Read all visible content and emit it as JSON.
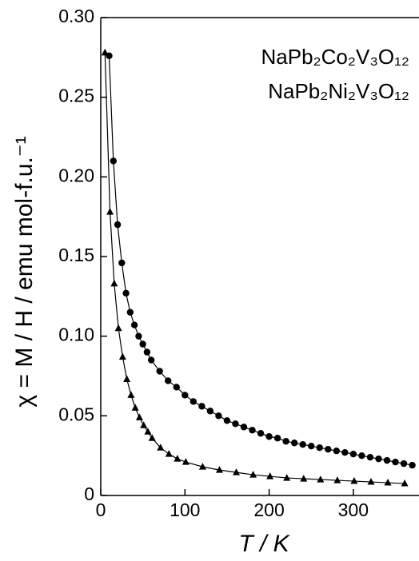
{
  "chart_data": {
    "type": "scatter-line",
    "x_label": "T / K",
    "y_label": "χ = M / H / emu mol-f.u.⁻¹",
    "xlim": [
      0,
      378
    ],
    "ylim": [
      0,
      0.3
    ],
    "xticks": [
      0,
      100,
      200,
      300
    ],
    "yticks": [
      0,
      {
        "value": 0.05,
        "label": "0.05"
      },
      {
        "value": 0.1,
        "label": "0.10"
      },
      {
        "value": 0.15,
        "label": "0.15"
      },
      {
        "value": 0.2,
        "label": "0.20"
      },
      {
        "value": 0.25,
        "label": "0.25"
      },
      {
        "value": 0.3,
        "label": "0.30"
      }
    ],
    "series": [
      {
        "name": "NaPb₂Co₂V₃O₁₂",
        "color": "#000000",
        "marker": "circle",
        "x": [
          10,
          15,
          20,
          25,
          30,
          35,
          40,
          45,
          50,
          55,
          60,
          70,
          80,
          90,
          100,
          110,
          120,
          130,
          140,
          150,
          160,
          170,
          180,
          190,
          200,
          210,
          220,
          230,
          240,
          250,
          260,
          270,
          280,
          290,
          300,
          310,
          320,
          330,
          340,
          350,
          360,
          370
        ],
        "values": [
          0.276,
          0.21,
          0.17,
          0.146,
          0.127,
          0.115,
          0.107,
          0.1,
          0.095,
          0.09,
          0.085,
          0.078,
          0.072,
          0.068,
          0.063,
          0.059,
          0.056,
          0.053,
          0.05,
          0.047,
          0.045,
          0.043,
          0.041,
          0.039,
          0.037,
          0.036,
          0.034,
          0.033,
          0.032,
          0.031,
          0.03,
          0.029,
          0.028,
          0.027,
          0.026,
          0.025,
          0.024,
          0.023,
          0.022,
          0.021,
          0.02,
          0.019
        ]
      },
      {
        "name": "NaPb₂Ni₂V₃O₁₂",
        "color": "#000000",
        "marker": "triangle",
        "x": [
          5,
          11,
          16,
          21,
          26,
          31,
          36,
          41,
          46,
          51,
          56,
          61,
          71,
          81,
          91,
          101,
          121,
          141,
          161,
          181,
          201,
          221,
          241,
          261,
          281,
          301,
          321,
          341,
          361
        ],
        "values": [
          0.278,
          0.178,
          0.133,
          0.105,
          0.087,
          0.073,
          0.063,
          0.055,
          0.049,
          0.044,
          0.04,
          0.036,
          0.03,
          0.026,
          0.023,
          0.021,
          0.018,
          0.016,
          0.0145,
          0.013,
          0.012,
          0.011,
          0.0105,
          0.01,
          0.0095,
          0.009,
          0.0085,
          0.008,
          0.0075
        ]
      }
    ]
  }
}
